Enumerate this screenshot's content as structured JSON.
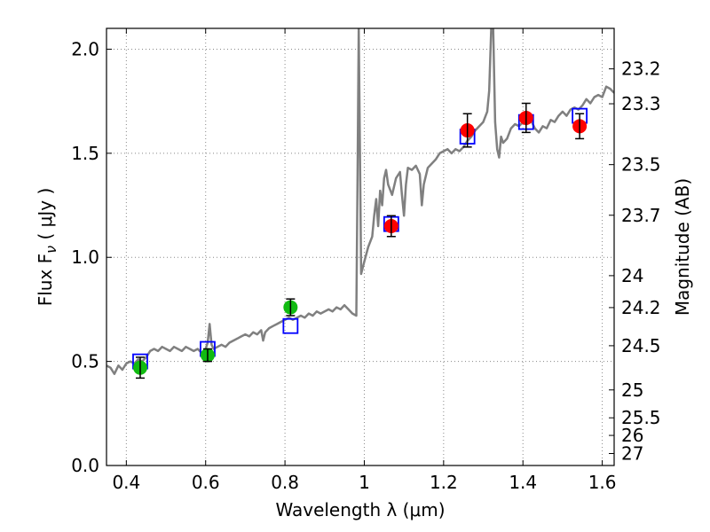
{
  "chart_data": {
    "type": "scatter",
    "xlabel": "Wavelength  λ (μm)",
    "ylabel": "Flux  F",
    "ylabel_sub": "ν",
    "ylabel_unit": "  ( μJy )",
    "y2label": "Magnitude (AB)",
    "xlim": [
      0.35,
      1.63
    ],
    "ylim": [
      0.0,
      2.1
    ],
    "grid": true,
    "x_ticks": [
      0.4,
      0.6,
      0.8,
      1.0,
      1.2,
      1.4,
      1.6
    ],
    "x_tick_labels": [
      "0.4",
      "0.6",
      "0.8",
      "1",
      "1.2",
      "1.4",
      "1.6"
    ],
    "y_ticks": [
      0.0,
      0.5,
      1.0,
      1.5,
      2.0
    ],
    "y_tick_labels": [
      "0.0",
      "0.5",
      "1.0",
      "1.5",
      "2.0"
    ],
    "mag_ticks": [
      "23.2",
      "23.3",
      "23.5",
      "23.7",
      "24",
      "24.2",
      "24.5",
      "25",
      "25.5",
      "26",
      "27"
    ],
    "colors": {
      "spectrum": "#808080",
      "model": "#0000ff",
      "green": "#11bb11",
      "red": "#ff0000",
      "errorbar": "#000000",
      "grid": "#888888"
    },
    "spectrum": [
      [
        0.35,
        0.48
      ],
      [
        0.36,
        0.47
      ],
      [
        0.37,
        0.44
      ],
      [
        0.38,
        0.48
      ],
      [
        0.39,
        0.46
      ],
      [
        0.4,
        0.49
      ],
      [
        0.41,
        0.5
      ],
      [
        0.42,
        0.49
      ],
      [
        0.43,
        0.51
      ],
      [
        0.44,
        0.5
      ],
      [
        0.45,
        0.52
      ],
      [
        0.46,
        0.55
      ],
      [
        0.47,
        0.56
      ],
      [
        0.48,
        0.55
      ],
      [
        0.49,
        0.57
      ],
      [
        0.5,
        0.56
      ],
      [
        0.51,
        0.55
      ],
      [
        0.52,
        0.57
      ],
      [
        0.53,
        0.56
      ],
      [
        0.54,
        0.55
      ],
      [
        0.55,
        0.57
      ],
      [
        0.56,
        0.56
      ],
      [
        0.57,
        0.55
      ],
      [
        0.58,
        0.56
      ],
      [
        0.59,
        0.54
      ],
      [
        0.6,
        0.56
      ],
      [
        0.605,
        0.59
      ],
      [
        0.61,
        0.68
      ],
      [
        0.615,
        0.58
      ],
      [
        0.62,
        0.56
      ],
      [
        0.63,
        0.57
      ],
      [
        0.64,
        0.58
      ],
      [
        0.65,
        0.57
      ],
      [
        0.66,
        0.59
      ],
      [
        0.67,
        0.6
      ],
      [
        0.68,
        0.61
      ],
      [
        0.69,
        0.62
      ],
      [
        0.7,
        0.63
      ],
      [
        0.71,
        0.62
      ],
      [
        0.72,
        0.64
      ],
      [
        0.73,
        0.63
      ],
      [
        0.74,
        0.65
      ],
      [
        0.745,
        0.6
      ],
      [
        0.75,
        0.64
      ],
      [
        0.76,
        0.66
      ],
      [
        0.77,
        0.67
      ],
      [
        0.78,
        0.68
      ],
      [
        0.79,
        0.69
      ],
      [
        0.8,
        0.7
      ],
      [
        0.81,
        0.71
      ],
      [
        0.82,
        0.7
      ],
      [
        0.83,
        0.71
      ],
      [
        0.84,
        0.72
      ],
      [
        0.85,
        0.71
      ],
      [
        0.86,
        0.73
      ],
      [
        0.87,
        0.72
      ],
      [
        0.88,
        0.74
      ],
      [
        0.89,
        0.73
      ],
      [
        0.9,
        0.74
      ],
      [
        0.91,
        0.75
      ],
      [
        0.92,
        0.74
      ],
      [
        0.93,
        0.76
      ],
      [
        0.94,
        0.75
      ],
      [
        0.95,
        0.77
      ],
      [
        0.96,
        0.75
      ],
      [
        0.97,
        0.73
      ],
      [
        0.98,
        0.72
      ],
      [
        0.983,
        1.4
      ],
      [
        0.986,
        2.1
      ],
      [
        0.989,
        1.5
      ],
      [
        0.992,
        0.92
      ],
      [
        1.0,
        0.98
      ],
      [
        1.01,
        1.05
      ],
      [
        1.02,
        1.1
      ],
      [
        1.025,
        1.2
      ],
      [
        1.03,
        1.28
      ],
      [
        1.035,
        1.15
      ],
      [
        1.04,
        1.32
      ],
      [
        1.045,
        1.25
      ],
      [
        1.05,
        1.38
      ],
      [
        1.055,
        1.42
      ],
      [
        1.06,
        1.35
      ],
      [
        1.07,
        1.3
      ],
      [
        1.08,
        1.38
      ],
      [
        1.09,
        1.41
      ],
      [
        1.095,
        1.3
      ],
      [
        1.1,
        1.2
      ],
      [
        1.105,
        1.35
      ],
      [
        1.11,
        1.43
      ],
      [
        1.12,
        1.42
      ],
      [
        1.13,
        1.44
      ],
      [
        1.14,
        1.4
      ],
      [
        1.145,
        1.25
      ],
      [
        1.15,
        1.35
      ],
      [
        1.16,
        1.43
      ],
      [
        1.17,
        1.45
      ],
      [
        1.18,
        1.47
      ],
      [
        1.19,
        1.5
      ],
      [
        1.2,
        1.51
      ],
      [
        1.21,
        1.52
      ],
      [
        1.22,
        1.5
      ],
      [
        1.23,
        1.52
      ],
      [
        1.24,
        1.51
      ],
      [
        1.25,
        1.53
      ],
      [
        1.26,
        1.56
      ],
      [
        1.27,
        1.58
      ],
      [
        1.28,
        1.61
      ],
      [
        1.29,
        1.63
      ],
      [
        1.3,
        1.65
      ],
      [
        1.31,
        1.7
      ],
      [
        1.315,
        1.8
      ],
      [
        1.32,
        2.1
      ],
      [
        1.325,
        2.1
      ],
      [
        1.33,
        1.65
      ],
      [
        1.335,
        1.52
      ],
      [
        1.34,
        1.48
      ],
      [
        1.345,
        1.58
      ],
      [
        1.35,
        1.55
      ],
      [
        1.36,
        1.57
      ],
      [
        1.37,
        1.62
      ],
      [
        1.38,
        1.64
      ],
      [
        1.39,
        1.63
      ],
      [
        1.4,
        1.65
      ],
      [
        1.41,
        1.64
      ],
      [
        1.42,
        1.66
      ],
      [
        1.43,
        1.62
      ],
      [
        1.44,
        1.6
      ],
      [
        1.45,
        1.63
      ],
      [
        1.46,
        1.62
      ],
      [
        1.47,
        1.66
      ],
      [
        1.48,
        1.65
      ],
      [
        1.49,
        1.68
      ],
      [
        1.5,
        1.7
      ],
      [
        1.51,
        1.68
      ],
      [
        1.52,
        1.71
      ],
      [
        1.53,
        1.72
      ],
      [
        1.54,
        1.71
      ],
      [
        1.55,
        1.73
      ],
      [
        1.56,
        1.76
      ],
      [
        1.57,
        1.74
      ],
      [
        1.58,
        1.77
      ],
      [
        1.59,
        1.78
      ],
      [
        1.6,
        1.77
      ],
      [
        1.61,
        1.82
      ],
      [
        1.62,
        1.81
      ],
      [
        1.63,
        1.79
      ]
    ],
    "model_points": [
      {
        "x": 0.435,
        "y": 0.5
      },
      {
        "x": 0.605,
        "y": 0.56
      },
      {
        "x": 0.814,
        "y": 0.67
      },
      {
        "x": 1.068,
        "y": 1.16
      },
      {
        "x": 1.26,
        "y": 1.58
      },
      {
        "x": 1.408,
        "y": 1.65
      },
      {
        "x": 1.543,
        "y": 1.68
      }
    ],
    "observed": [
      {
        "x": 0.435,
        "y": 0.47,
        "err": 0.05,
        "color": "green"
      },
      {
        "x": 0.605,
        "y": 0.53,
        "err": 0.03,
        "color": "green"
      },
      {
        "x": 0.814,
        "y": 0.76,
        "err": 0.04,
        "color": "green"
      },
      {
        "x": 1.068,
        "y": 1.15,
        "err": 0.05,
        "color": "red"
      },
      {
        "x": 1.26,
        "y": 1.61,
        "err": 0.08,
        "color": "red"
      },
      {
        "x": 1.408,
        "y": 1.67,
        "err": 0.07,
        "color": "red"
      },
      {
        "x": 1.543,
        "y": 1.63,
        "err": 0.06,
        "color": "red"
      }
    ]
  }
}
